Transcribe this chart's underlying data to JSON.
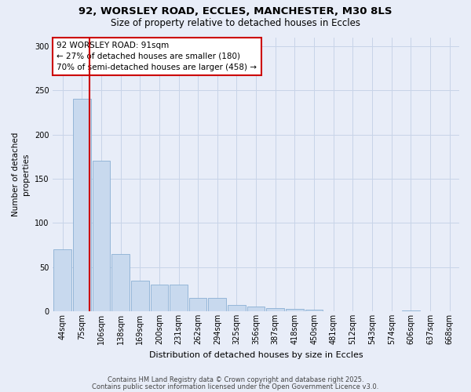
{
  "title1": "92, WORSLEY ROAD, ECCLES, MANCHESTER, M30 8LS",
  "title2": "Size of property relative to detached houses in Eccles",
  "xlabel": "Distribution of detached houses by size in Eccles",
  "ylabel": "Number of detached\nproperties",
  "bar_labels": [
    "44sqm",
    "75sqm",
    "106sqm",
    "138sqm",
    "169sqm",
    "200sqm",
    "231sqm",
    "262sqm",
    "294sqm",
    "325sqm",
    "356sqm",
    "387sqm",
    "418sqm",
    "450sqm",
    "481sqm",
    "512sqm",
    "543sqm",
    "574sqm",
    "606sqm",
    "637sqm",
    "668sqm"
  ],
  "bar_values": [
    70,
    240,
    170,
    65,
    35,
    30,
    30,
    15,
    15,
    7,
    5,
    4,
    3,
    2,
    0,
    0,
    0,
    0,
    1,
    0,
    0
  ],
  "bar_color": "#c8d9ee",
  "bar_edge_color": "#8aafd4",
  "grid_color": "#c8d4e8",
  "background_color": "#e8edf8",
  "vline_x": 1.38,
  "vline_color": "#cc0000",
  "annotation_line1": "92 WORSLEY ROAD: 91sqm",
  "annotation_line2": "← 27% of detached houses are smaller (180)",
  "annotation_line3": "70% of semi-detached houses are larger (458) →",
  "annotation_box_color": "#ffffff",
  "annotation_box_edge_color": "#cc0000",
  "annotation_fontsize": 7.5,
  "ylim": [
    0,
    310
  ],
  "yticks": [
    0,
    50,
    100,
    150,
    200,
    250,
    300
  ],
  "title1_fontsize": 9.5,
  "title2_fontsize": 8.5,
  "xlabel_fontsize": 8.0,
  "ylabel_fontsize": 7.5,
  "tick_fontsize": 7.0,
  "footer_text1": "Contains HM Land Registry data © Crown copyright and database right 2025.",
  "footer_text2": "Contains public sector information licensed under the Open Government Licence v3.0."
}
